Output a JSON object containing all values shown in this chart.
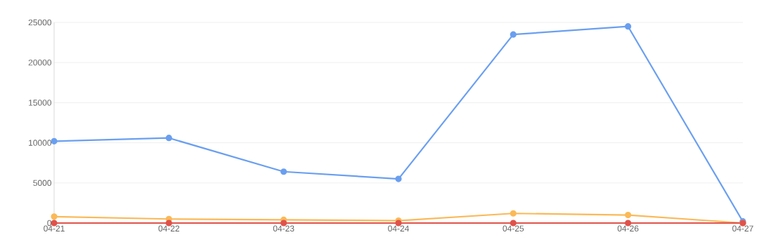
{
  "chart_data": {
    "type": "line",
    "categories": [
      "04-21",
      "04-22",
      "04-23",
      "04-24",
      "04-25",
      "04-26",
      "04-27"
    ],
    "series": [
      {
        "color": "#6a9ff0",
        "values": [
          10200,
          10600,
          6400,
          5500,
          23500,
          24500,
          200
        ]
      },
      {
        "color": "#fbb957",
        "values": [
          800,
          500,
          400,
          300,
          1200,
          1000,
          0
        ]
      },
      {
        "color": "#e0524b",
        "values": [
          0,
          0,
          0,
          0,
          0,
          0,
          0
        ]
      }
    ],
    "ylim": [
      0,
      25000
    ],
    "yticks": [
      0,
      5000,
      10000,
      15000,
      20000,
      25000
    ],
    "grid": "y",
    "marker": "circle",
    "line_style": "solid"
  }
}
